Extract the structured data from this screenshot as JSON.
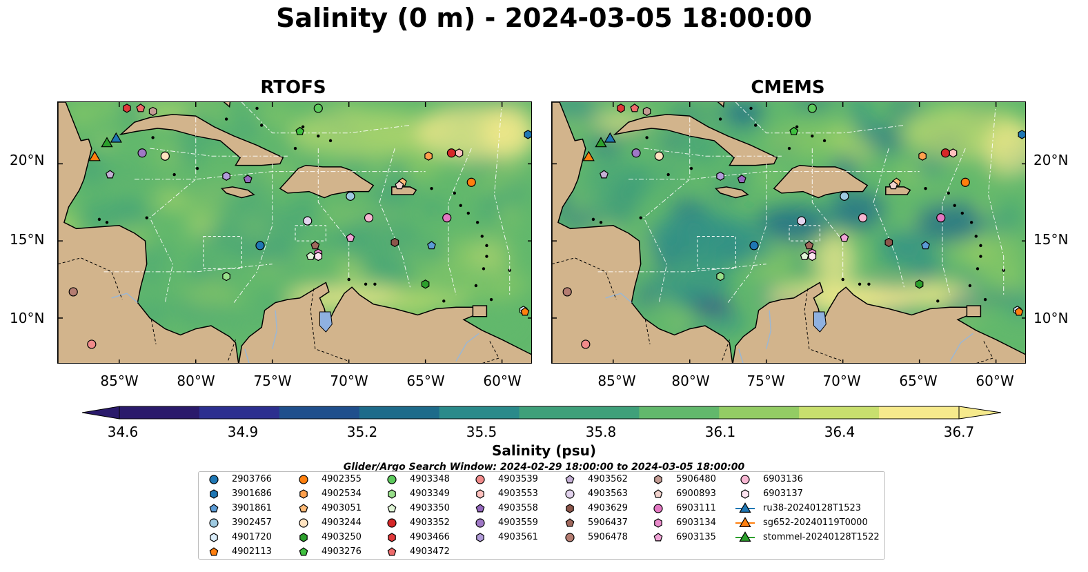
{
  "figure": {
    "title": "Salinity (0 m) - 2024-03-05 18:00:00",
    "search_window": "Glider/Argo Search Window: 2024-02-29 18:00:00 to 2024-03-05 18:00:00"
  },
  "panels": [
    {
      "title": "RTOFS"
    },
    {
      "title": "CMEMS"
    }
  ],
  "axes": {
    "lat_labels": [
      "20°N",
      "15°N",
      "10°N"
    ],
    "lon_labels": [
      "85°W",
      "80°W",
      "75°W",
      "70°W",
      "65°W",
      "60°W"
    ],
    "lat_range": [
      7,
      24
    ],
    "lon_range": [
      -89,
      -58
    ]
  },
  "colorbar": {
    "label": "Salinity (psu)",
    "ticks": [
      "34.6",
      "34.9",
      "35.2",
      "35.5",
      "35.8",
      "36.1",
      "36.4",
      "36.7"
    ],
    "range": [
      34.6,
      36.7
    ],
    "extend": "both",
    "colormap": "haline",
    "colors": [
      "#2a1a6b",
      "#2c2f8f",
      "#1f4f8c",
      "#1d6b8a",
      "#2a8a8a",
      "#3fa07a",
      "#62b86c",
      "#93cc64",
      "#c8df6e",
      "#f6ea8c"
    ]
  },
  "colors": {
    "land": "#d2b48c",
    "lake": "#8fb1e0",
    "sea_fresh": "#2a1a6b"
  },
  "legend": {
    "columns": [
      [
        {
          "label": "2903766",
          "marker": "circle",
          "color": "#1f77b4"
        },
        {
          "label": "3901686",
          "marker": "hexagon",
          "color": "#1f77b4"
        },
        {
          "label": "3901861",
          "marker": "pentagon",
          "color": "#5b9bd5"
        },
        {
          "label": "3902457",
          "marker": "circle",
          "color": "#9ecae1"
        },
        {
          "label": "4901720",
          "marker": "hexagon",
          "color": "#dbeefb"
        },
        {
          "label": "4902113",
          "marker": "pentagon",
          "color": "#ff7f0e"
        }
      ],
      [
        {
          "label": "4902355",
          "marker": "circle",
          "color": "#ff7f0e"
        },
        {
          "label": "4902534",
          "marker": "hexagon",
          "color": "#ffa04d"
        },
        {
          "label": "4903051",
          "marker": "pentagon",
          "color": "#ffbb78"
        },
        {
          "label": "4903244",
          "marker": "circle",
          "color": "#ffe3c0"
        },
        {
          "label": "4903250",
          "marker": "hexagon",
          "color": "#2ca02c"
        },
        {
          "label": "4903276",
          "marker": "pentagon",
          "color": "#3fbf3f"
        }
      ],
      [
        {
          "label": "4903348",
          "marker": "circle",
          "color": "#5cc95c"
        },
        {
          "label": "4903349",
          "marker": "hexagon",
          "color": "#98df8a"
        },
        {
          "label": "4903350",
          "marker": "pentagon",
          "color": "#dff5d6"
        },
        {
          "label": "4903352",
          "marker": "circle",
          "color": "#d62728"
        },
        {
          "label": "4903466",
          "marker": "hexagon",
          "color": "#e0393a"
        },
        {
          "label": "4903472",
          "marker": "pentagon",
          "color": "#ee6b6b"
        }
      ],
      [
        {
          "label": "4903539",
          "marker": "circle",
          "color": "#f08a8a"
        },
        {
          "label": "4903553",
          "marker": "hexagon",
          "color": "#ffc0bd"
        },
        {
          "label": "4903558",
          "marker": "pentagon",
          "color": "#9467bd"
        },
        {
          "label": "4903559",
          "marker": "circle",
          "color": "#9f78c6"
        },
        {
          "label": "4903561",
          "marker": "hexagon",
          "color": "#b19cd9"
        }
      ],
      [
        {
          "label": "4903562",
          "marker": "pentagon",
          "color": "#c5b0d5"
        },
        {
          "label": "4903563",
          "marker": "circle",
          "color": "#e3d4ee"
        },
        {
          "label": "4903629",
          "marker": "hexagon",
          "color": "#8c564b"
        },
        {
          "label": "5906437",
          "marker": "pentagon",
          "color": "#a0685c"
        },
        {
          "label": "5906478",
          "marker": "circle",
          "color": "#b57d72"
        }
      ],
      [
        {
          "label": "5906480",
          "marker": "hexagon",
          "color": "#c49c94"
        },
        {
          "label": "6900893",
          "marker": "pentagon",
          "color": "#f2d3cd"
        },
        {
          "label": "6903111",
          "marker": "circle",
          "color": "#e377c2"
        },
        {
          "label": "6903134",
          "marker": "hexagon",
          "color": "#e98acb"
        },
        {
          "label": "6903135",
          "marker": "pentagon",
          "color": "#f0a3d6"
        }
      ],
      [
        {
          "label": "6903136",
          "marker": "circle",
          "color": "#f7b6d2"
        },
        {
          "label": "6903137",
          "marker": "hexagon",
          "color": "#fde3f0"
        },
        {
          "label": "ru38-20240128T1523",
          "marker": "triangle-line",
          "color": "#1f77b4"
        },
        {
          "label": "sg652-20240119T0000",
          "marker": "triangle-line",
          "color": "#ff7f0e"
        },
        {
          "label": "stommel-20240128T1522",
          "marker": "triangle-line",
          "color": "#2ca02c"
        }
      ]
    ]
  },
  "markers": [
    {
      "id": "2903766",
      "lon": -75.8,
      "lat": 14.7
    },
    {
      "id": "3901686",
      "lon": -58.3,
      "lat": 21.9
    },
    {
      "id": "3902457",
      "lon": -69.9,
      "lat": 17.9
    },
    {
      "id": "4902355",
      "lon": -62.0,
      "lat": 18.8
    },
    {
      "id": "4902534",
      "lon": -64.8,
      "lat": 20.5
    },
    {
      "id": "4903051",
      "lon": -66.5,
      "lat": 18.8
    },
    {
      "id": "4903244",
      "lon": -82.0,
      "lat": 20.5
    },
    {
      "id": "4903250",
      "lon": -65.0,
      "lat": 12.2
    },
    {
      "id": "4903276",
      "lon": -73.2,
      "lat": 22.1
    },
    {
      "id": "4903348",
      "lon": -72.0,
      "lat": 23.6
    },
    {
      "id": "4903349",
      "lon": -78.0,
      "lat": 12.7
    },
    {
      "id": "4903350",
      "lon": -72.5,
      "lat": 14.0
    },
    {
      "id": "4903352",
      "lon": -63.3,
      "lat": 20.7
    },
    {
      "id": "4903466",
      "lon": -84.5,
      "lat": 23.6
    },
    {
      "id": "4903472",
      "lon": -83.6,
      "lat": 23.6
    },
    {
      "id": "4903539",
      "lon": -86.8,
      "lat": 8.3
    },
    {
      "id": "4903553",
      "lon": -62.8,
      "lat": 20.7
    },
    {
      "id": "4903558",
      "lon": -76.6,
      "lat": 19.0
    },
    {
      "id": "4903559",
      "lon": -83.5,
      "lat": 20.7
    },
    {
      "id": "4903561",
      "lon": -78.0,
      "lat": 19.2
    },
    {
      "id": "4903562",
      "lon": -85.6,
      "lat": 19.3
    },
    {
      "id": "4903563",
      "lon": -72.7,
      "lat": 16.3
    },
    {
      "id": "4903629",
      "lon": -67.0,
      "lat": 14.9
    },
    {
      "id": "5906437",
      "lon": -72.2,
      "lat": 14.7
    },
    {
      "id": "5906478",
      "lon": -88.0,
      "lat": 11.7
    },
    {
      "id": "5906480",
      "lon": -82.8,
      "lat": 23.4
    },
    {
      "id": "6900893",
      "lon": -66.7,
      "lat": 18.6
    },
    {
      "id": "6903111",
      "lon": -63.6,
      "lat": 16.5
    },
    {
      "id": "6903134",
      "lon": -72.0,
      "lat": 14.2
    },
    {
      "id": "6903135",
      "lon": -69.9,
      "lat": 15.2
    },
    {
      "id": "6903136",
      "lon": -68.7,
      "lat": 16.5
    },
    {
      "id": "6903137",
      "lon": -72.0,
      "lat": 14.0
    },
    {
      "id": "3901861",
      "lon": -64.6,
      "lat": 14.7
    },
    {
      "id": "4901720",
      "lon": -58.6,
      "lat": 10.5
    },
    {
      "id": "4902113",
      "lon": -58.5,
      "lat": 10.4
    },
    {
      "id": "ru38-20240128T1523",
      "lon": -85.2,
      "lat": 21.6
    },
    {
      "id": "sg652-20240119T0000",
      "lon": -86.6,
      "lat": 20.4
    },
    {
      "id": "stommel-20240128T1522",
      "lon": -85.8,
      "lat": 21.3
    }
  ]
}
